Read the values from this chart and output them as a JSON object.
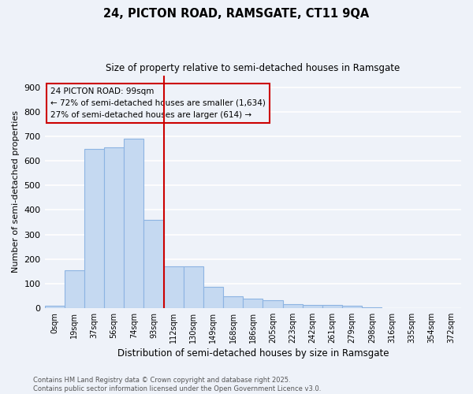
{
  "title1": "24, PICTON ROAD, RAMSGATE, CT11 9QA",
  "title2": "Size of property relative to semi-detached houses in Ramsgate",
  "xlabel": "Distribution of semi-detached houses by size in Ramsgate",
  "ylabel": "Number of semi-detached properties",
  "bin_labels": [
    "0sqm",
    "19sqm",
    "37sqm",
    "56sqm",
    "74sqm",
    "93sqm",
    "112sqm",
    "130sqm",
    "149sqm",
    "168sqm",
    "186sqm",
    "205sqm",
    "223sqm",
    "242sqm",
    "261sqm",
    "279sqm",
    "298sqm",
    "316sqm",
    "335sqm",
    "354sqm",
    "372sqm"
  ],
  "bar_heights": [
    8,
    155,
    650,
    655,
    690,
    360,
    170,
    170,
    85,
    48,
    37,
    32,
    15,
    12,
    12,
    8,
    4,
    0,
    0,
    0,
    0
  ],
  "bar_color": "#c5d9f1",
  "bar_edge_color": "#8db4e2",
  "vline_x": 6,
  "vline_color": "#cc0000",
  "annotation_title": "24 PICTON ROAD: 99sqm",
  "annotation_line1": "← 72% of semi-detached houses are smaller (1,634)",
  "annotation_line2": "27% of semi-detached houses are larger (614) →",
  "annotation_box_color": "#cc0000",
  "footer1": "Contains HM Land Registry data © Crown copyright and database right 2025.",
  "footer2": "Contains public sector information licensed under the Open Government Licence v3.0.",
  "bg_color": "#eef2f9",
  "grid_color": "#ffffff",
  "ylim": [
    0,
    950
  ],
  "yticks": [
    0,
    100,
    200,
    300,
    400,
    500,
    600,
    700,
    800,
    900
  ]
}
